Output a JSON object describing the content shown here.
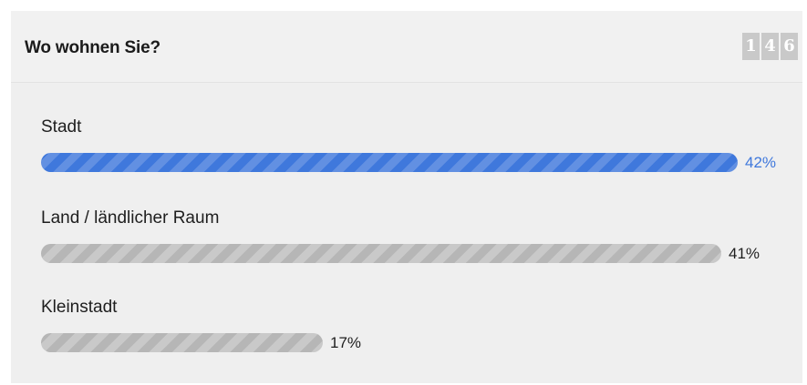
{
  "poll": {
    "question": "Wo wohnen Sie?",
    "vote_count_digits": [
      "1",
      "4",
      "6"
    ],
    "accent_color": "#3f78dc",
    "bar_color": "#b6b6b6",
    "options": [
      {
        "label": "Stadt",
        "percent": 42,
        "percent_text": "42%",
        "leading": true
      },
      {
        "label": "Land / ländlicher Raum",
        "percent": 41,
        "percent_text": "41%",
        "leading": false
      },
      {
        "label": "Kleinstadt",
        "percent": 17,
        "percent_text": "17%",
        "leading": false
      }
    ]
  }
}
